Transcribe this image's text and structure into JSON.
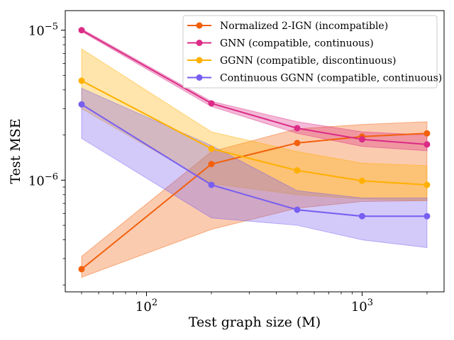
{
  "chart_data": {
    "type": "line",
    "xlabel": "Test graph size (M)",
    "ylabel": "Test MSE",
    "xscale": "log",
    "yscale": "log",
    "xlim": [
      42,
      2400
    ],
    "ylim": [
      1.8e-07,
      1.35e-05
    ],
    "x_ticks": [
      {
        "value": 100,
        "base": "10",
        "exp": "2"
      },
      {
        "value": 1000,
        "base": "10",
        "exp": "3"
      }
    ],
    "y_ticks": [
      {
        "value": 1e-06,
        "base": "10",
        "exp": "−6"
      },
      {
        "value": 1e-05,
        "base": "10",
        "exp": "−5"
      }
    ],
    "grid": false,
    "legend_position": "top-right",
    "x": [
      50,
      200,
      500,
      1000,
      2000
    ],
    "series": [
      {
        "name": "Normalized 2-IGN (incompatible)",
        "color": "#f2600c",
        "values": [
          2.55e-07,
          1.28e-06,
          1.77e-06,
          1.95e-06,
          2.05e-06
        ],
        "lower": [
          2.25e-07,
          4.7e-07,
          6.5e-07,
          7.2e-07,
          7.3e-07
        ],
        "upper": [
          3.1e-07,
          1.55e-06,
          2.2e-06,
          2.35e-06,
          2.45e-06
        ]
      },
      {
        "name": "GNN (compatible, continuous)",
        "color": "#db2b86",
        "values": [
          1e-05,
          3.25e-06,
          2.22e-06,
          1.87e-06,
          1.73e-06
        ],
        "lower": [
          9.8e-06,
          3.1e-06,
          2.05e-06,
          1.68e-06,
          1.57e-06
        ],
        "upper": [
          1.02e-05,
          3.35e-06,
          2.45e-06,
          2.1e-06,
          2e-06
        ]
      },
      {
        "name": "GGNN (compatible, discontinuous)",
        "color": "#ffb000",
        "values": [
          4.6e-06,
          1.62e-06,
          1.16e-06,
          9.9e-07,
          9.3e-07
        ],
        "lower": [
          3e-06,
          9.5e-07,
          8e-07,
          7.5e-07,
          7.3e-07
        ],
        "upper": [
          7.5e-06,
          2.1e-06,
          1.55e-06,
          1.3e-06,
          1.25e-06
        ]
      },
      {
        "name": "Continuous GGNN (compatible, continuous)",
        "color": "#785ef0",
        "values": [
          3.2e-06,
          9.3e-07,
          6.35e-07,
          5.75e-07,
          5.75e-07
        ],
        "lower": [
          1.9e-06,
          5.6e-07,
          5e-07,
          4e-07,
          3.55e-07
        ],
        "upper": [
          4.1e-06,
          1.7e-06,
          8.5e-07,
          7.6e-07,
          7.6e-07
        ]
      }
    ]
  }
}
